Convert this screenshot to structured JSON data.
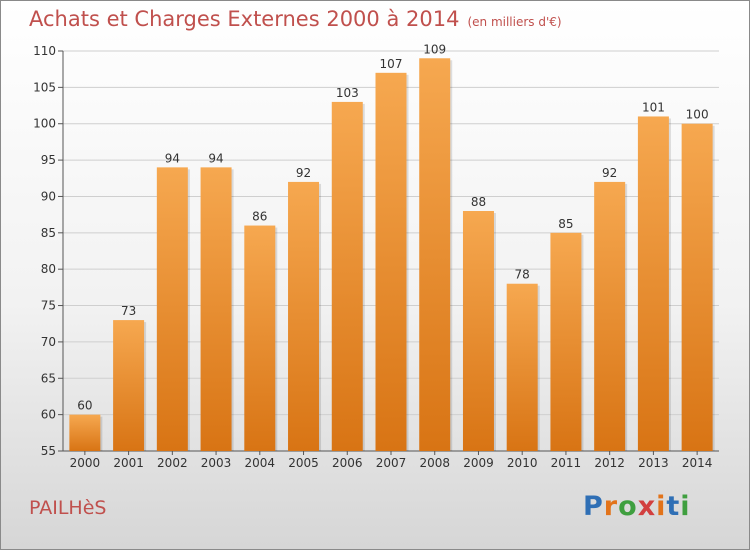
{
  "header": {
    "title": "Achats et Charges Externes 2000 à 2014",
    "unit": "(en milliers d'€)"
  },
  "footer": {
    "commune": "PAILHèS",
    "brand": "Proxiti"
  },
  "colors": {
    "bar_top": "#f6a850",
    "bar_bottom": "#d87414",
    "title": "#c0504d",
    "grid": "#cfcfcf"
  },
  "chart_data": {
    "type": "bar",
    "categories": [
      "2000",
      "2001",
      "2002",
      "2003",
      "2004",
      "2005",
      "2006",
      "2007",
      "2008",
      "2009",
      "2010",
      "2011",
      "2012",
      "2013",
      "2014"
    ],
    "values": [
      60,
      73,
      94,
      94,
      86,
      92,
      103,
      107,
      109,
      88,
      78,
      85,
      92,
      101,
      100
    ],
    "ylim": [
      55,
      110
    ],
    "yticks": [
      55,
      60,
      65,
      70,
      75,
      80,
      85,
      90,
      95,
      100,
      105,
      110
    ],
    "grid": true,
    "data_labels": true
  }
}
